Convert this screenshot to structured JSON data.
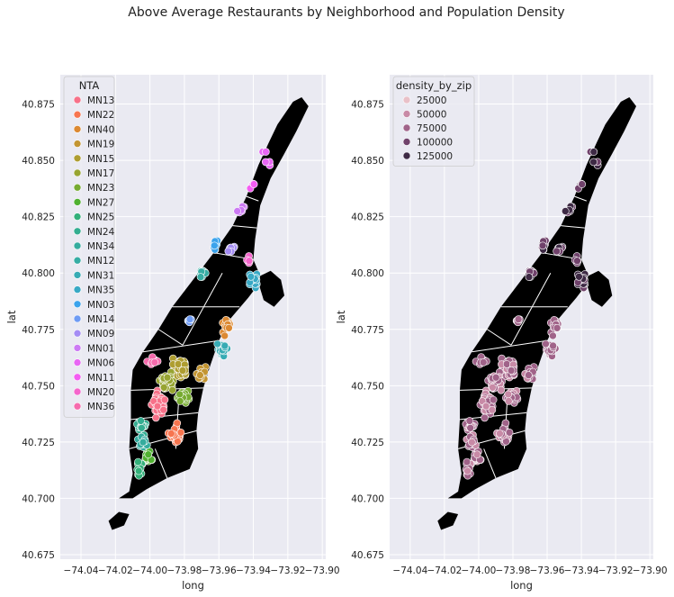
{
  "figure": {
    "title": "Above Average Restaurants by Neighborhood and Population Density"
  },
  "colors": {
    "axes_bg": "#eaeaf2",
    "grid": "#ffffff",
    "map_fill": "#000000",
    "tick_text": "#222222"
  },
  "chart_data": [
    {
      "type": "scatter",
      "panel": "left",
      "xlabel": "long",
      "ylabel": "lat",
      "xlim": [
        -74.052,
        -73.898
      ],
      "ylim": [
        40.673,
        40.888
      ],
      "xticks": [
        -74.04,
        -74.02,
        -74.0,
        -73.98,
        -73.96,
        -73.94,
        -73.92,
        -73.9
      ],
      "xtick_labels": [
        "−74.04",
        "−74.02",
        "−74.00",
        "−73.98",
        "−73.96",
        "−73.94",
        "−73.92",
        "−73.90"
      ],
      "yticks": [
        40.675,
        40.7,
        40.725,
        40.75,
        40.775,
        40.8,
        40.825,
        40.85,
        40.875
      ],
      "ytick_labels": [
        "40.675",
        "40.700",
        "40.725",
        "40.750",
        "40.775",
        "40.800",
        "40.825",
        "40.850",
        "40.875"
      ],
      "grid": true,
      "legend": {
        "title": "NTA",
        "placement": "top-left",
        "entries": [
          {
            "label": "MN13",
            "color": "#f77189"
          },
          {
            "label": "MN22",
            "color": "#f7754f"
          },
          {
            "label": "MN40",
            "color": "#dc8932"
          },
          {
            "label": "MN19",
            "color": "#c39532"
          },
          {
            "label": "MN15",
            "color": "#ae9d31"
          },
          {
            "label": "MN17",
            "color": "#97a431"
          },
          {
            "label": "MN23",
            "color": "#77ab31"
          },
          {
            "label": "MN27",
            "color": "#50b131"
          },
          {
            "label": "MN25",
            "color": "#33b07a"
          },
          {
            "label": "MN24",
            "color": "#34ae91"
          },
          {
            "label": "MN34",
            "color": "#35ac9e"
          },
          {
            "label": "MN12",
            "color": "#36ada4"
          },
          {
            "label": "MN31",
            "color": "#37abb4"
          },
          {
            "label": "MN35",
            "color": "#38a9c5"
          },
          {
            "label": "MN03",
            "color": "#3ba3ec"
          },
          {
            "label": "MN14",
            "color": "#6e9bf4"
          },
          {
            "label": "MN09",
            "color": "#a48cf4"
          },
          {
            "label": "MN01",
            "color": "#cc7af4"
          },
          {
            "label": "MN06",
            "color": "#e866f4"
          },
          {
            "label": "MN11",
            "color": "#f45cf2"
          },
          {
            "label": "MN20",
            "color": "#f565cc"
          },
          {
            "label": "MN36",
            "color": "#f66bad"
          }
        ]
      }
    },
    {
      "type": "scatter",
      "panel": "right",
      "xlabel": "long",
      "ylabel": "lat",
      "xlim": [
        -74.052,
        -73.898
      ],
      "ylim": [
        40.673,
        40.888
      ],
      "xticks": [
        -74.04,
        -74.02,
        -74.0,
        -73.98,
        -73.96,
        -73.94,
        -73.92,
        -73.9
      ],
      "xtick_labels": [
        "−74.04",
        "−74.02",
        "−74.00",
        "−73.98",
        "−73.96",
        "−73.94",
        "−73.92",
        "−73.90"
      ],
      "yticks": [
        40.675,
        40.7,
        40.725,
        40.75,
        40.775,
        40.8,
        40.825,
        40.85,
        40.875
      ],
      "ytick_labels": [
        "40.675",
        "40.700",
        "40.725",
        "40.750",
        "40.775",
        "40.800",
        "40.825",
        "40.850",
        "40.875"
      ],
      "grid": true,
      "legend": {
        "title": "density_by_zip",
        "placement": "top-left",
        "entries": [
          {
            "label": "25000",
            "color": "#e9c1c8"
          },
          {
            "label": "50000",
            "color": "#c88aa6"
          },
          {
            "label": "75000",
            "color": "#a06389"
          },
          {
            "label": "100000",
            "color": "#70426b"
          },
          {
            "label": "125000",
            "color": "#3e2a45"
          }
        ]
      }
    }
  ]
}
